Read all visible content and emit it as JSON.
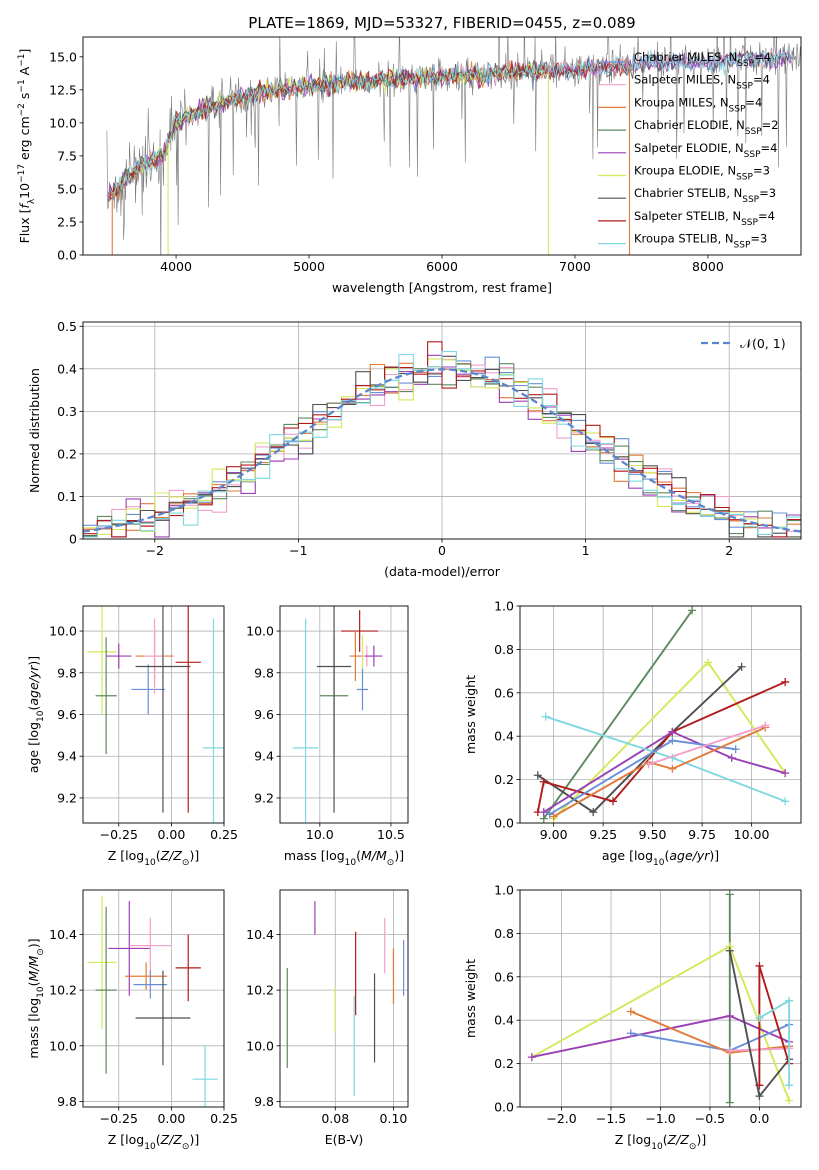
{
  "figure": {
    "title": "PLATE=1869, MJD=53327, FIBERID=0455, z=0.089"
  },
  "colors": {
    "Chabrier MILES": "#6a8fd8",
    "Salpeter MILES": "#f2a0cc",
    "Kroupa MILES": "#e07b39",
    "Chabrier ELODIE": "#5c8a5e",
    "Salpeter ELODIE": "#9b3fb5",
    "Kroupa ELODIE": "#d4e85a",
    "Chabrier STELIB": "#505050",
    "Salpeter STELIB": "#b01c1c",
    "Kroupa STELIB": "#7fd8df",
    "normal": "#5a86d0"
  },
  "chart_data": [
    {
      "id": "spectrum",
      "type": "line",
      "xlabel": "wavelength [Angstrom, rest frame]",
      "ylabel": "Flux [f_λ10^-17 erg cm^-2 s^-1 A^-1]",
      "xlim": [
        3300,
        8700
      ],
      "ylim": [
        0,
        16.5
      ],
      "xticks": [
        4000,
        5000,
        6000,
        7000,
        8000
      ],
      "yticks": [
        0.0,
        2.5,
        5.0,
        7.5,
        10.0,
        12.5,
        15.0
      ],
      "grid": false,
      "legend_position": "right",
      "legend": [
        {
          "model": "Chabrier MILES",
          "nssp": "4"
        },
        {
          "model": "Salpeter MILES",
          "nssp": "4"
        },
        {
          "model": "Kroupa MILES",
          "nssp": "4"
        },
        {
          "model": "Chabrier ELODIE",
          "nssp": "2"
        },
        {
          "model": "Salpeter ELODIE",
          "nssp": "4"
        },
        {
          "model": "Kroupa ELODIE",
          "nssp": "3"
        },
        {
          "model": "Chabrier STELIB",
          "nssp": "3"
        },
        {
          "model": "Salpeter STELIB",
          "nssp": "4"
        },
        {
          "model": "Kroupa STELIB",
          "nssp": "3"
        }
      ],
      "data_trend": {
        "x": [
          3500,
          3700,
          3900,
          4000,
          4200,
          4500,
          4800,
          5000,
          5500,
          6000,
          6500,
          7000,
          7400,
          7500,
          8000,
          8500,
          8700
        ],
        "y": [
          4.5,
          6.5,
          7.5,
          10.0,
          11.0,
          12.0,
          12.5,
          12.8,
          13.2,
          13.5,
          13.8,
          14.0,
          14.3,
          14.5,
          14.6,
          14.9,
          15.1
        ]
      }
    },
    {
      "id": "residuals",
      "type": "line",
      "xlabel": "(data-model)/error",
      "ylabel": "Normed distribution",
      "xlim": [
        -2.5,
        2.5
      ],
      "ylim": [
        0,
        0.51
      ],
      "xticks": [
        -2,
        -1,
        0,
        1,
        2
      ],
      "yticks": [
        0.0,
        0.1,
        0.2,
        0.3,
        0.4,
        0.5
      ],
      "grid": true,
      "legend_position": "upper right",
      "legend_label": "𝒩(0, 1)",
      "bin_width": 0.1
    },
    {
      "id": "age-Z",
      "type": "scatter",
      "xlabel": "Z [log10(Z/Z⊙)]",
      "ylabel": "age  [log10(age/yr)]",
      "xlim": [
        -0.42,
        0.25
      ],
      "ylim": [
        9.08,
        10.12
      ],
      "xticks": [
        -0.25,
        0.0,
        0.25
      ],
      "xticklabels": [
        "−0.25",
        "0.00",
        "0.25"
      ],
      "yticks": [
        9.2,
        9.4,
        9.6,
        9.8,
        10.0
      ],
      "grid": true,
      "points": [
        {
          "m": "Kroupa ELODIE",
          "x": -0.33,
          "y": 9.9,
          "xerr": 0.07,
          "yerr": 0.3
        },
        {
          "m": "Salpeter ELODIE",
          "x": -0.25,
          "y": 9.88,
          "xerr": 0.06,
          "yerr": 0.06
        },
        {
          "m": "Chabrier ELODIE",
          "x": -0.31,
          "y": 9.69,
          "xerr": 0.05,
          "yerr": 0.28
        },
        {
          "m": "Chabrier MILES",
          "x": -0.11,
          "y": 9.72,
          "xerr": 0.08,
          "yerr": 0.12
        },
        {
          "m": "Kroupa MILES",
          "x": -0.08,
          "y": 9.88,
          "xerr": 0.09,
          "yerr": 0.13
        },
        {
          "m": "Salpeter MILES",
          "x": -0.08,
          "y": 9.88,
          "xerr": 0.05,
          "yerr": 0.18
        },
        {
          "m": "Chabrier STELIB",
          "x": -0.04,
          "y": 9.83,
          "xerr": 0.13,
          "yerr": 0.7
        },
        {
          "m": "Salpeter STELIB",
          "x": 0.08,
          "y": 9.85,
          "xerr": 0.06,
          "yerr": 0.72
        },
        {
          "m": "Kroupa STELIB",
          "x": 0.2,
          "y": 9.44,
          "xerr": 0.05,
          "yerr": 0.62
        }
      ]
    },
    {
      "id": "age-mass",
      "type": "scatter",
      "xlabel": "mass [log10(M/M⊙)]",
      "ylabel": "",
      "xlim": [
        9.72,
        10.62
      ],
      "ylim": [
        9.08,
        10.12
      ],
      "xticks": [
        10.0,
        10.5
      ],
      "xticklabels": [
        "10.0",
        "10.5"
      ],
      "yticks": [
        9.2,
        9.4,
        9.6,
        9.8,
        10.0
      ],
      "grid": true,
      "points": [
        {
          "m": "Kroupa STELIB",
          "x": 9.9,
          "y": 9.44,
          "xerr": 0.09,
          "yerr": 0.62
        },
        {
          "m": "Chabrier ELODIE",
          "x": 10.1,
          "y": 9.69,
          "xerr": 0.1,
          "yerr": 0.28
        },
        {
          "m": "Chabrier STELIB",
          "x": 10.1,
          "y": 9.83,
          "xerr": 0.12,
          "yerr": 0.7
        },
        {
          "m": "Salpeter STELIB",
          "x": 10.28,
          "y": 10.0,
          "xerr": 0.13,
          "yerr": 0.1
        },
        {
          "m": "Kroupa ELODIE",
          "x": 10.3,
          "y": 9.88,
          "xerr": 0.03,
          "yerr": 0.1
        },
        {
          "m": "Kroupa MILES",
          "x": 10.25,
          "y": 9.88,
          "xerr": 0.04,
          "yerr": 0.12
        },
        {
          "m": "Salpeter MILES",
          "x": 10.33,
          "y": 9.88,
          "xerr": 0.04,
          "yerr": 0.05
        },
        {
          "m": "Salpeter ELODIE",
          "x": 10.38,
          "y": 9.88,
          "xerr": 0.06,
          "yerr": 0.05
        },
        {
          "m": "Chabrier MILES",
          "x": 10.3,
          "y": 9.72,
          "xerr": 0.04,
          "yerr": 0.1
        }
      ]
    },
    {
      "id": "weight-age",
      "type": "line",
      "xlabel": "age  [log10(age/yr)]",
      "ylabel": "mass weight",
      "xlim": [
        8.83,
        10.25
      ],
      "ylim": [
        0,
        1.0
      ],
      "xticks": [
        9.0,
        9.25,
        9.5,
        9.75,
        10.0
      ],
      "xticklabels": [
        "9.00",
        "9.25",
        "9.50",
        "9.75",
        "10.00"
      ],
      "yticks": [
        0.0,
        0.2,
        0.4,
        0.6,
        0.8,
        1.0
      ],
      "grid": true,
      "lines": [
        {
          "m": "Chabrier ELODIE",
          "pts": [
            [
              8.95,
              0.02
            ],
            [
              9.7,
              0.98
            ]
          ]
        },
        {
          "m": "Kroupa ELODIE",
          "pts": [
            [
              9.0,
              0.02
            ],
            [
              9.78,
              0.74
            ],
            [
              10.17,
              0.23
            ]
          ]
        },
        {
          "m": "Chabrier STELIB",
          "pts": [
            [
              8.92,
              0.22
            ],
            [
              9.2,
              0.05
            ],
            [
              9.6,
              0.42
            ],
            [
              9.95,
              0.72
            ]
          ]
        },
        {
          "m": "Salpeter STELIB",
          "pts": [
            [
              8.92,
              0.05
            ],
            [
              8.95,
              0.19
            ],
            [
              9.3,
              0.1
            ],
            [
              9.6,
              0.42
            ],
            [
              10.17,
              0.65
            ]
          ]
        },
        {
          "m": "Salpeter ELODIE",
          "pts": [
            [
              8.95,
              0.05
            ],
            [
              9.6,
              0.42
            ],
            [
              9.9,
              0.3
            ],
            [
              10.17,
              0.23
            ]
          ]
        },
        {
          "m": "Kroupa STELIB",
          "pts": [
            [
              8.96,
              0.49
            ],
            [
              9.6,
              0.3
            ],
            [
              10.17,
              0.1
            ]
          ]
        },
        {
          "m": "Chabrier MILES",
          "pts": [
            [
              8.98,
              0.04
            ],
            [
              9.6,
              0.38
            ],
            [
              9.92,
              0.34
            ]
          ]
        },
        {
          "m": "Kroupa MILES",
          "pts": [
            [
              9.0,
              0.03
            ],
            [
              9.48,
              0.28
            ],
            [
              9.6,
              0.25
            ],
            [
              10.07,
              0.44
            ]
          ]
        },
        {
          "m": "Salpeter MILES",
          "pts": [
            [
              9.48,
              0.27
            ],
            [
              10.07,
              0.45
            ]
          ]
        }
      ]
    },
    {
      "id": "mass-Z",
      "type": "scatter",
      "xlabel": "Z [log10(Z/Z⊙)]",
      "ylabel": "mass [log10(M/M⊙)]",
      "xlim": [
        -0.42,
        0.25
      ],
      "ylim": [
        9.78,
        10.56
      ],
      "xticks": [
        -0.25,
        0.0,
        0.25
      ],
      "xticklabels": [
        "−0.25",
        "0.00",
        "0.25"
      ],
      "yticks": [
        9.8,
        10.0,
        10.2,
        10.4
      ],
      "grid": true,
      "points": [
        {
          "m": "Kroupa ELODIE",
          "x": -0.33,
          "y": 10.3,
          "xerr": 0.07,
          "yerr": 0.24
        },
        {
          "m": "Chabrier ELODIE",
          "x": -0.31,
          "y": 10.2,
          "xerr": 0.05,
          "yerr": 0.3
        },
        {
          "m": "Salpeter ELODIE",
          "x": -0.2,
          "y": 10.35,
          "xerr": 0.1,
          "yerr": 0.17
        },
        {
          "m": "Kroupa MILES",
          "x": -0.12,
          "y": 10.25,
          "xerr": 0.1,
          "yerr": 0.05
        },
        {
          "m": "Salpeter MILES",
          "x": -0.1,
          "y": 10.36,
          "xerr": 0.1,
          "yerr": 0.1
        },
        {
          "m": "Chabrier MILES",
          "x": -0.1,
          "y": 10.22,
          "xerr": 0.08,
          "yerr": 0.05
        },
        {
          "m": "Chabrier STELIB",
          "x": -0.04,
          "y": 10.1,
          "xerr": 0.13,
          "yerr": 0.17
        },
        {
          "m": "Salpeter STELIB",
          "x": 0.08,
          "y": 10.28,
          "xerr": 0.06,
          "yerr": 0.12
        },
        {
          "m": "Kroupa STELIB",
          "x": 0.16,
          "y": 9.88,
          "xerr": 0.06,
          "yerr": 0.12
        }
      ]
    },
    {
      "id": "mass-ebv",
      "type": "scatter",
      "xlabel": "E(B-V)",
      "ylabel": "",
      "xlim": [
        0.061,
        0.105
      ],
      "ylim": [
        9.78,
        10.56
      ],
      "xticks": [
        0.08,
        0.1
      ],
      "xticklabels": [
        "0.08",
        "0.10"
      ],
      "yticks": [
        9.8,
        10.0,
        10.2,
        10.4
      ],
      "grid": true,
      "points": [
        {
          "m": "Chabrier ELODIE",
          "x": 0.0635,
          "y": 10.1,
          "xerr": 0,
          "yerr": 0.18
        },
        {
          "m": "Salpeter ELODIE",
          "x": 0.073,
          "y": 10.46,
          "xerr": 0,
          "yerr": 0.06
        },
        {
          "m": "Kroupa ELODIE",
          "x": 0.08,
          "y": 10.13,
          "xerr": 0,
          "yerr": 0.08
        },
        {
          "m": "Kroupa STELIB",
          "x": 0.0865,
          "y": 10.0,
          "xerr": 0,
          "yerr": 0.18
        },
        {
          "m": "Salpeter STELIB",
          "x": 0.087,
          "y": 10.26,
          "xerr": 0,
          "yerr": 0.15
        },
        {
          "m": "Chabrier STELIB",
          "x": 0.0935,
          "y": 10.1,
          "xerr": 0,
          "yerr": 0.16
        },
        {
          "m": "Salpeter MILES",
          "x": 0.097,
          "y": 10.36,
          "xerr": 0,
          "yerr": 0.1
        },
        {
          "m": "Kroupa MILES",
          "x": 0.1,
          "y": 10.25,
          "xerr": 0,
          "yerr": 0.1
        },
        {
          "m": "Chabrier MILES",
          "x": 0.1035,
          "y": 10.28,
          "xerr": 0,
          "yerr": 0.1
        }
      ]
    },
    {
      "id": "weight-Z",
      "type": "line",
      "xlabel": "Z [log10(Z/Z⊙)]",
      "ylabel": "mass weight",
      "xlim": [
        -2.42,
        0.42
      ],
      "ylim": [
        0,
        1.0
      ],
      "xticks": [
        -2.0,
        -1.5,
        -1.0,
        -0.5,
        0.0
      ],
      "xticklabels": [
        "−2.0",
        "−1.5",
        "−1.0",
        "−0.5",
        "0.0"
      ],
      "yticks": [
        0.0,
        0.2,
        0.4,
        0.6,
        0.8,
        1.0
      ],
      "grid": true,
      "lines": [
        {
          "m": "Chabrier ELODIE",
          "pts": [
            [
              -0.3,
              0.02
            ],
            [
              -0.3,
              0.98
            ]
          ]
        },
        {
          "m": "Kroupa ELODIE",
          "pts": [
            [
              -2.3,
              0.23
            ],
            [
              -0.3,
              0.74
            ],
            [
              0.3,
              0.03
            ]
          ]
        },
        {
          "m": "Salpeter ELODIE",
          "pts": [
            [
              -2.3,
              0.23
            ],
            [
              -0.3,
              0.42
            ],
            [
              0.3,
              0.3
            ]
          ]
        },
        {
          "m": "Chabrier MILES",
          "pts": [
            [
              -1.3,
              0.34
            ],
            [
              -0.3,
              0.26
            ],
            [
              0.3,
              0.38
            ]
          ]
        },
        {
          "m": "Kroupa MILES",
          "pts": [
            [
              -1.3,
              0.44
            ],
            [
              -0.3,
              0.25
            ],
            [
              0.3,
              0.28
            ]
          ]
        },
        {
          "m": "Salpeter MILES",
          "pts": [
            [
              -0.3,
              0.26
            ],
            [
              0.3,
              0.27
            ]
          ]
        },
        {
          "m": "Chabrier STELIB",
          "pts": [
            [
              -0.3,
              0.72
            ],
            [
              0.0,
              0.05
            ],
            [
              0.3,
              0.22
            ]
          ]
        },
        {
          "m": "Salpeter STELIB",
          "pts": [
            [
              0.0,
              0.1
            ],
            [
              0.0,
              0.65
            ],
            [
              0.3,
              0.2
            ]
          ]
        },
        {
          "m": "Kroupa STELIB",
          "pts": [
            [
              0.0,
              0.41
            ],
            [
              0.3,
              0.49
            ],
            [
              0.3,
              0.1
            ]
          ]
        }
      ]
    }
  ]
}
